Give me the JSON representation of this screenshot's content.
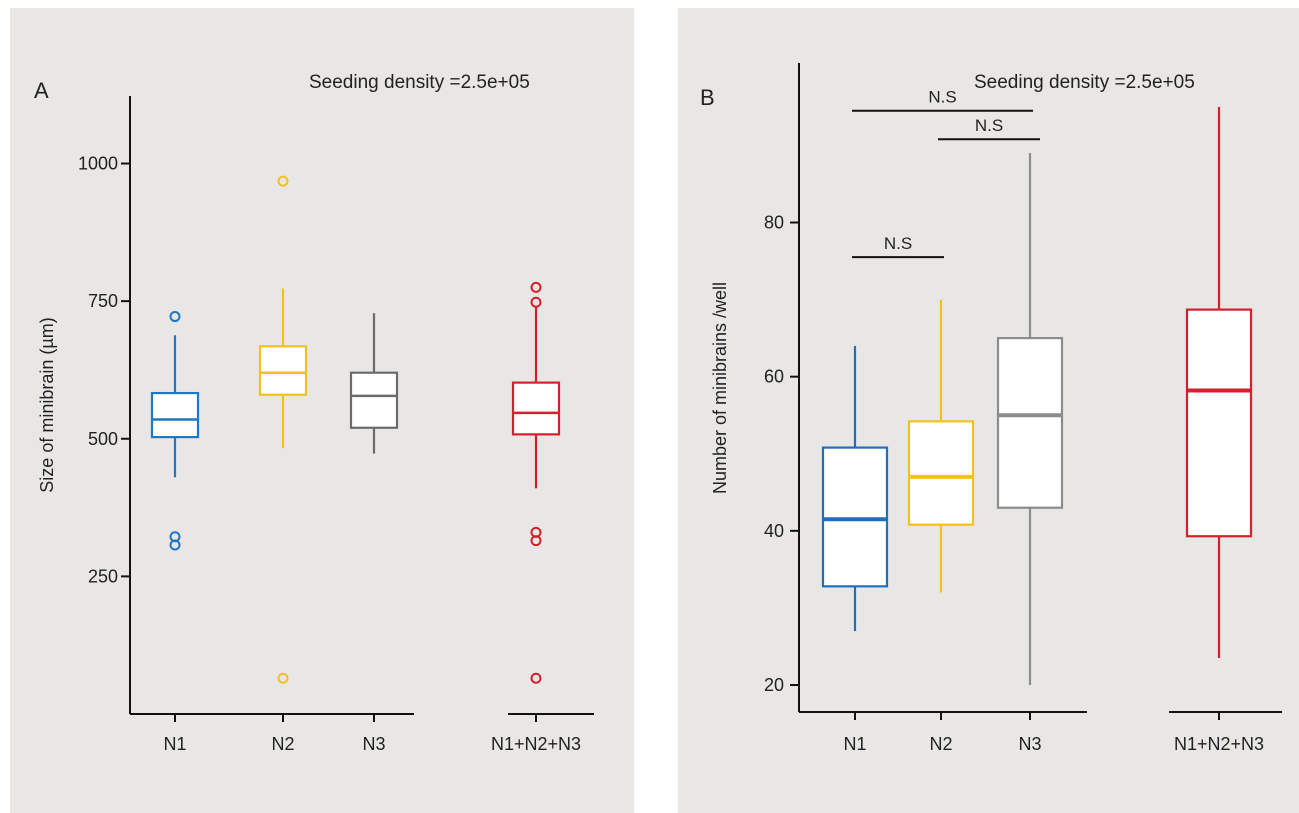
{
  "chart_data": [
    {
      "type": "box",
      "panel_label": "A",
      "annotation": "Seeding density  =2.5e+05",
      "ylabel": "Size of minibrain  (µm)",
      "xlabel": "",
      "ylim": [
        0,
        1050
      ],
      "yticks": [
        250,
        500,
        750,
        1000
      ],
      "grid": false,
      "categories": [
        "N1",
        "N2",
        "N3",
        "N1+N2+N3"
      ],
      "series": [
        {
          "category": "N1",
          "color": "#1f77c4",
          "whisker_low": 430,
          "q1": 503,
          "median": 535,
          "q3": 583,
          "whisker_high": 688,
          "outliers": [
            722,
            322,
            307
          ]
        },
        {
          "category": "N2",
          "color": "#f2c11b",
          "whisker_low": 483,
          "q1": 580,
          "median": 620,
          "q3": 668,
          "whisker_high": 773,
          "outliers": [
            968,
            65
          ]
        },
        {
          "category": "N3",
          "color": "#6b6b6b",
          "whisker_low": 473,
          "q1": 520,
          "median": 578,
          "q3": 620,
          "whisker_high": 728,
          "outliers": []
        },
        {
          "category": "N1+N2+N3",
          "color": "#d4202a",
          "whisker_low": 410,
          "q1": 508,
          "median": 547,
          "q3": 602,
          "whisker_high": 740,
          "outliers": [
            775,
            748,
            330,
            315,
            65
          ]
        }
      ]
    },
    {
      "type": "box",
      "panel_label": "B",
      "annotation": "Seeding density  =2.5e+05",
      "ylabel": "Number of minibrains /well",
      "xlabel": "",
      "ylim": [
        16.5,
        95.5
      ],
      "yticks": [
        20,
        40,
        60,
        80
      ],
      "grid": false,
      "categories": [
        "N1",
        "N2",
        "N3",
        "N1+N2+N3"
      ],
      "series": [
        {
          "category": "N1",
          "color": "#1f6fbf",
          "whisker_low": 27,
          "q1": 32.8,
          "median": 41.5,
          "q3": 50.8,
          "whisker_high": 64,
          "outliers": []
        },
        {
          "category": "N2",
          "color": "#f2c11b",
          "whisker_low": 32,
          "q1": 40.8,
          "median": 47,
          "q3": 54.2,
          "whisker_high": 70,
          "outliers": []
        },
        {
          "category": "N3",
          "color": "#8c8c8c",
          "whisker_low": 20,
          "q1": 43,
          "median": 55,
          "q3": 65,
          "whisker_high": 89,
          "outliers": []
        },
        {
          "category": "N1+N2+N3",
          "color": "#d4202a",
          "whisker_low": 23.5,
          "q1": 39.3,
          "median": 58.2,
          "q3": 68.7,
          "whisker_high": 95,
          "outliers": []
        }
      ],
      "significance": [
        {
          "from": "N1",
          "to": "N2",
          "label": "N.S",
          "y": 75.5
        },
        {
          "from": "N1",
          "to": "N3",
          "label": "N.S",
          "y": 94.5
        },
        {
          "from": "N2",
          "to": "N3",
          "label": "N.S",
          "y": 90.8
        }
      ]
    }
  ]
}
